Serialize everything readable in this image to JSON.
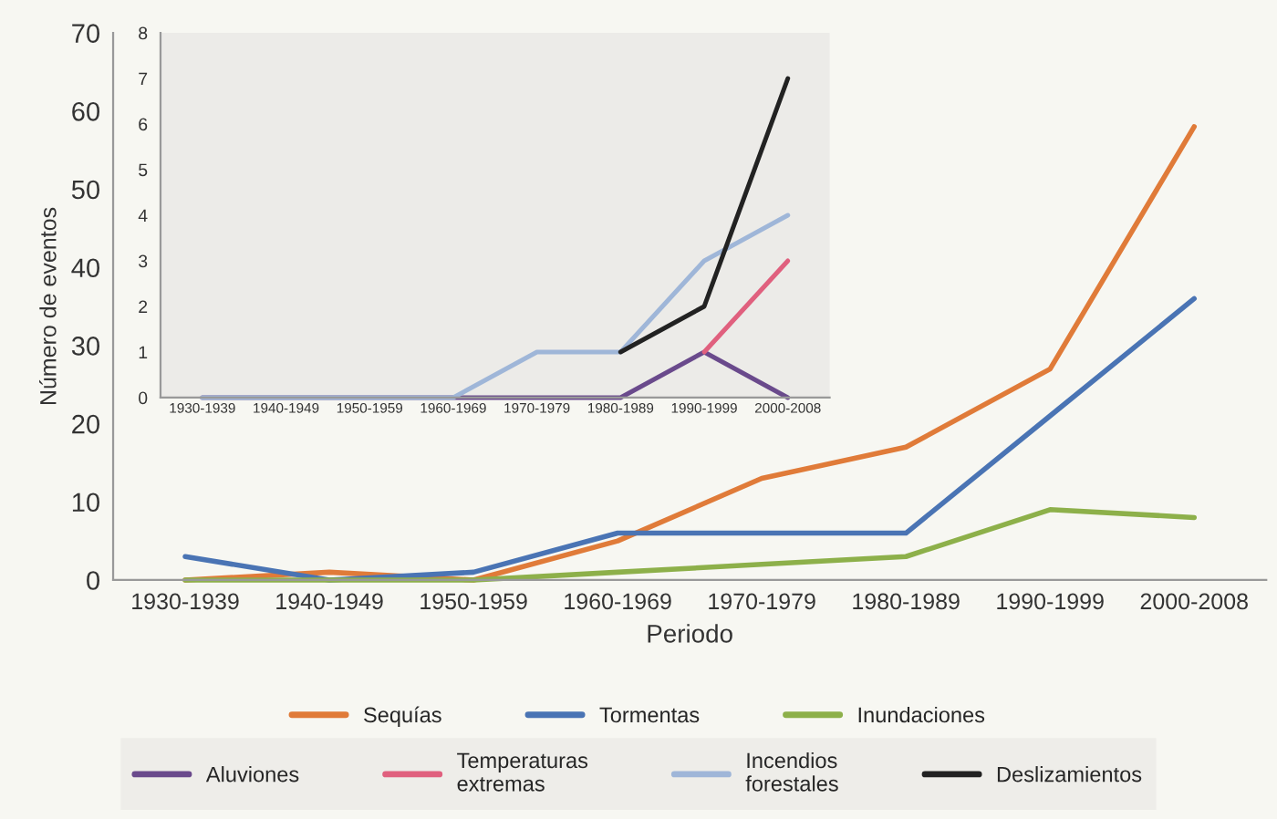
{
  "chart_data": [
    {
      "type": "line",
      "xlabel": "Periodo",
      "ylabel": "Número de eventos",
      "categories": [
        "1930-1939",
        "1940-1949",
        "1950-1959",
        "1960-1969",
        "1970-1979",
        "1980-1989",
        "1990-1999",
        "2000-2008"
      ],
      "series": [
        {
          "name": "Sequías",
          "color": "#e07b39",
          "values": [
            0,
            1,
            0,
            5,
            13,
            17,
            27,
            58
          ]
        },
        {
          "name": "Tormentas",
          "color": "#4a74b4",
          "values": [
            3,
            0,
            1,
            6,
            6,
            6,
            21,
            36
          ]
        },
        {
          "name": "Inundaciones",
          "color": "#8db04a",
          "values": [
            0,
            0,
            0,
            1,
            2,
            3,
            9,
            8
          ]
        }
      ],
      "ylim": [
        0,
        70
      ],
      "yticks": [
        0,
        10,
        20,
        30,
        40,
        50,
        60,
        70
      ],
      "grid": false,
      "legend": "bottom",
      "line_style": "solid",
      "marker": "none"
    },
    {
      "type": "line",
      "categories": [
        "1930-1939",
        "1940-1949",
        "1950-1959",
        "1960-1969",
        "1970-1979",
        "1980-1989",
        "1990-1999",
        "2000-2008"
      ],
      "series": [
        {
          "name": "Aluviones",
          "color": "#6a4a8c",
          "values": [
            0,
            0,
            0,
            0,
            0,
            0,
            1,
            0
          ]
        },
        {
          "name": "Temperaturas\nextremas",
          "color": "#e0607e",
          "values": [
            null,
            null,
            null,
            null,
            null,
            null,
            1,
            3
          ]
        },
        {
          "name": "Incendios\nforestales",
          "color": "#9fb6d8",
          "values": [
            0,
            0,
            0,
            0,
            1,
            1,
            3,
            4
          ]
        },
        {
          "name": "Deslizamientos",
          "color": "#222222",
          "values": [
            null,
            null,
            null,
            null,
            null,
            1,
            2,
            7
          ]
        }
      ],
      "ylim": [
        0,
        8
      ],
      "yticks": [
        0,
        1,
        2,
        3,
        4,
        5,
        6,
        7,
        8
      ],
      "grid": false,
      "legend": "bottom",
      "line_style": "solid",
      "marker": "none"
    }
  ]
}
